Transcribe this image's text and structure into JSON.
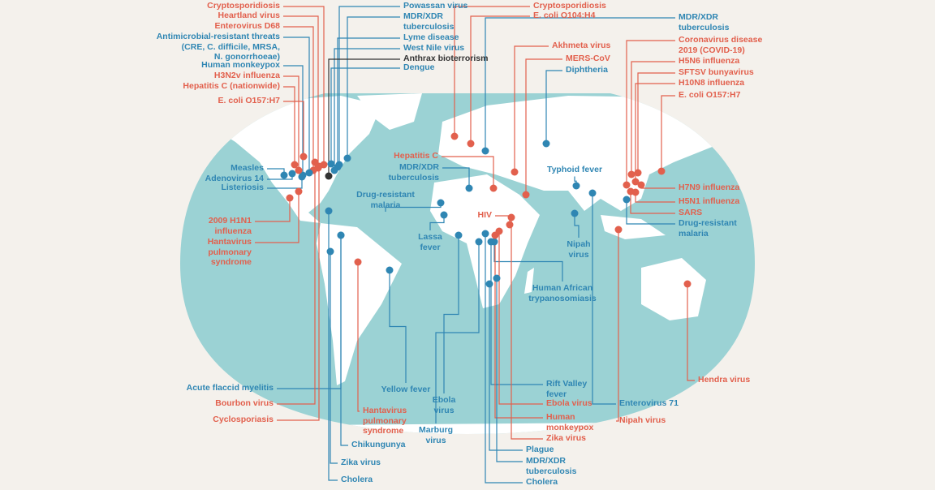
{
  "colors": {
    "red": "#e2604d",
    "blue": "#2f86b3",
    "dark": "#333333",
    "ocean": "#9bd2d4",
    "land": "#ffffff",
    "background": "#f4f1ec"
  },
  "labels": [
    {
      "lines": [
        "Cryptosporidiosis"
      ],
      "color": "red"
    },
    {
      "lines": [
        "Heartland virus"
      ],
      "color": "red"
    },
    {
      "lines": [
        "Enterovirus D68"
      ],
      "color": "red"
    },
    {
      "lines": [
        "Antimicrobial-resistant threats",
        "(CRE, C. difficile, MRSA,",
        "N. gonorrhoeae)"
      ],
      "color": "blue"
    },
    {
      "lines": [
        "Human monkeypox"
      ],
      "color": "blue"
    },
    {
      "lines": [
        "H3N2v influenza"
      ],
      "color": "red"
    },
    {
      "lines": [
        "Hepatitis C (nationwide)"
      ],
      "color": "red"
    },
    {
      "lines": [
        "E. coli O157:H7"
      ],
      "color": "red"
    },
    {
      "lines": [
        "Powassan virus"
      ],
      "color": "blue"
    },
    {
      "lines": [
        "MDR/XDR",
        "tuberculosis"
      ],
      "color": "blue"
    },
    {
      "lines": [
        "Lyme disease"
      ],
      "color": "blue"
    },
    {
      "lines": [
        "West Nile virus"
      ],
      "color": "blue"
    },
    {
      "lines": [
        "Anthrax bioterrorism"
      ],
      "color": "dark"
    },
    {
      "lines": [
        "Dengue"
      ],
      "color": "blue"
    },
    {
      "lines": [
        "Measles"
      ],
      "color": "blue"
    },
    {
      "lines": [
        "Adenovirus 14"
      ],
      "color": "blue"
    },
    {
      "lines": [
        "Listeriosis"
      ],
      "color": "blue"
    },
    {
      "lines": [
        "2009 H1N1",
        "influenza"
      ],
      "color": "red"
    },
    {
      "lines": [
        "Hantavirus",
        "pulmonary",
        "syndrome"
      ],
      "color": "red"
    },
    {
      "lines": [
        "Cryptosporidiosis"
      ],
      "color": "red"
    },
    {
      "lines": [
        "E. coli O104:H4"
      ],
      "color": "red"
    },
    {
      "lines": [
        "MDR/XDR",
        "tuberculosis"
      ],
      "color": "blue"
    },
    {
      "lines": [
        "Akhmeta virus"
      ],
      "color": "red"
    },
    {
      "lines": [
        "MERS-CoV"
      ],
      "color": "red"
    },
    {
      "lines": [
        "Diphtheria"
      ],
      "color": "blue"
    },
    {
      "lines": [
        "Coronavirus disease",
        "2019 (COVID-19)"
      ],
      "color": "red"
    },
    {
      "lines": [
        "H5N6 influenza"
      ],
      "color": "red"
    },
    {
      "lines": [
        "SFTSV bunyavirus"
      ],
      "color": "red"
    },
    {
      "lines": [
        "H10N8 influenza"
      ],
      "color": "red"
    },
    {
      "lines": [
        "E. coli O157:H7"
      ],
      "color": "red"
    },
    {
      "lines": [
        "H7N9 influenza"
      ],
      "color": "red"
    },
    {
      "lines": [
        "H5N1 influenza"
      ],
      "color": "red"
    },
    {
      "lines": [
        "SARS"
      ],
      "color": "red"
    },
    {
      "lines": [
        "Drug-resistant",
        "malaria"
      ],
      "color": "blue"
    },
    {
      "lines": [
        "Hepatitis C"
      ],
      "color": "red"
    },
    {
      "lines": [
        "MDR/XDR",
        "tuberculosis"
      ],
      "color": "blue"
    },
    {
      "lines": [
        "Typhoid fever"
      ],
      "color": "blue"
    },
    {
      "lines": [
        "Drug-resistant",
        "malaria"
      ],
      "color": "blue"
    },
    {
      "lines": [
        "HIV"
      ],
      "color": "red"
    },
    {
      "lines": [
        "Lassa",
        "fever"
      ],
      "color": "blue"
    },
    {
      "lines": [
        "Nipah",
        "virus"
      ],
      "color": "blue"
    },
    {
      "lines": [
        "Human African",
        "trypanosomiasis"
      ],
      "color": "blue"
    },
    {
      "lines": [
        "Acute flaccid myelitis"
      ],
      "color": "blue"
    },
    {
      "lines": [
        "Bourbon virus"
      ],
      "color": "red"
    },
    {
      "lines": [
        "Cyclosporiasis"
      ],
      "color": "red"
    },
    {
      "lines": [
        "Yellow fever"
      ],
      "color": "blue"
    },
    {
      "lines": [
        "Hantavirus",
        "pulmonary",
        "syndrome"
      ],
      "color": "red"
    },
    {
      "lines": [
        "Chikungunya"
      ],
      "color": "blue"
    },
    {
      "lines": [
        "Zika virus"
      ],
      "color": "blue"
    },
    {
      "lines": [
        "Cholera"
      ],
      "color": "blue"
    },
    {
      "lines": [
        "Ebola",
        "virus"
      ],
      "color": "blue"
    },
    {
      "lines": [
        "Marburg",
        "virus"
      ],
      "color": "blue"
    },
    {
      "lines": [
        "Rift Valley",
        "fever"
      ],
      "color": "blue"
    },
    {
      "lines": [
        "Ebola virus"
      ],
      "color": "red"
    },
    {
      "lines": [
        "Human",
        "monkeypox"
      ],
      "color": "red"
    },
    {
      "lines": [
        "Zika virus"
      ],
      "color": "red"
    },
    {
      "lines": [
        "Plague"
      ],
      "color": "blue"
    },
    {
      "lines": [
        "MDR/XDR",
        "tuberculosis"
      ],
      "color": "blue"
    },
    {
      "lines": [
        "Cholera"
      ],
      "color": "blue"
    },
    {
      "lines": [
        "Enterovirus 71"
      ],
      "color": "blue"
    },
    {
      "lines": [
        "Nipah virus"
      ],
      "color": "red"
    },
    {
      "lines": [
        "Hendra virus"
      ],
      "color": "red"
    }
  ]
}
